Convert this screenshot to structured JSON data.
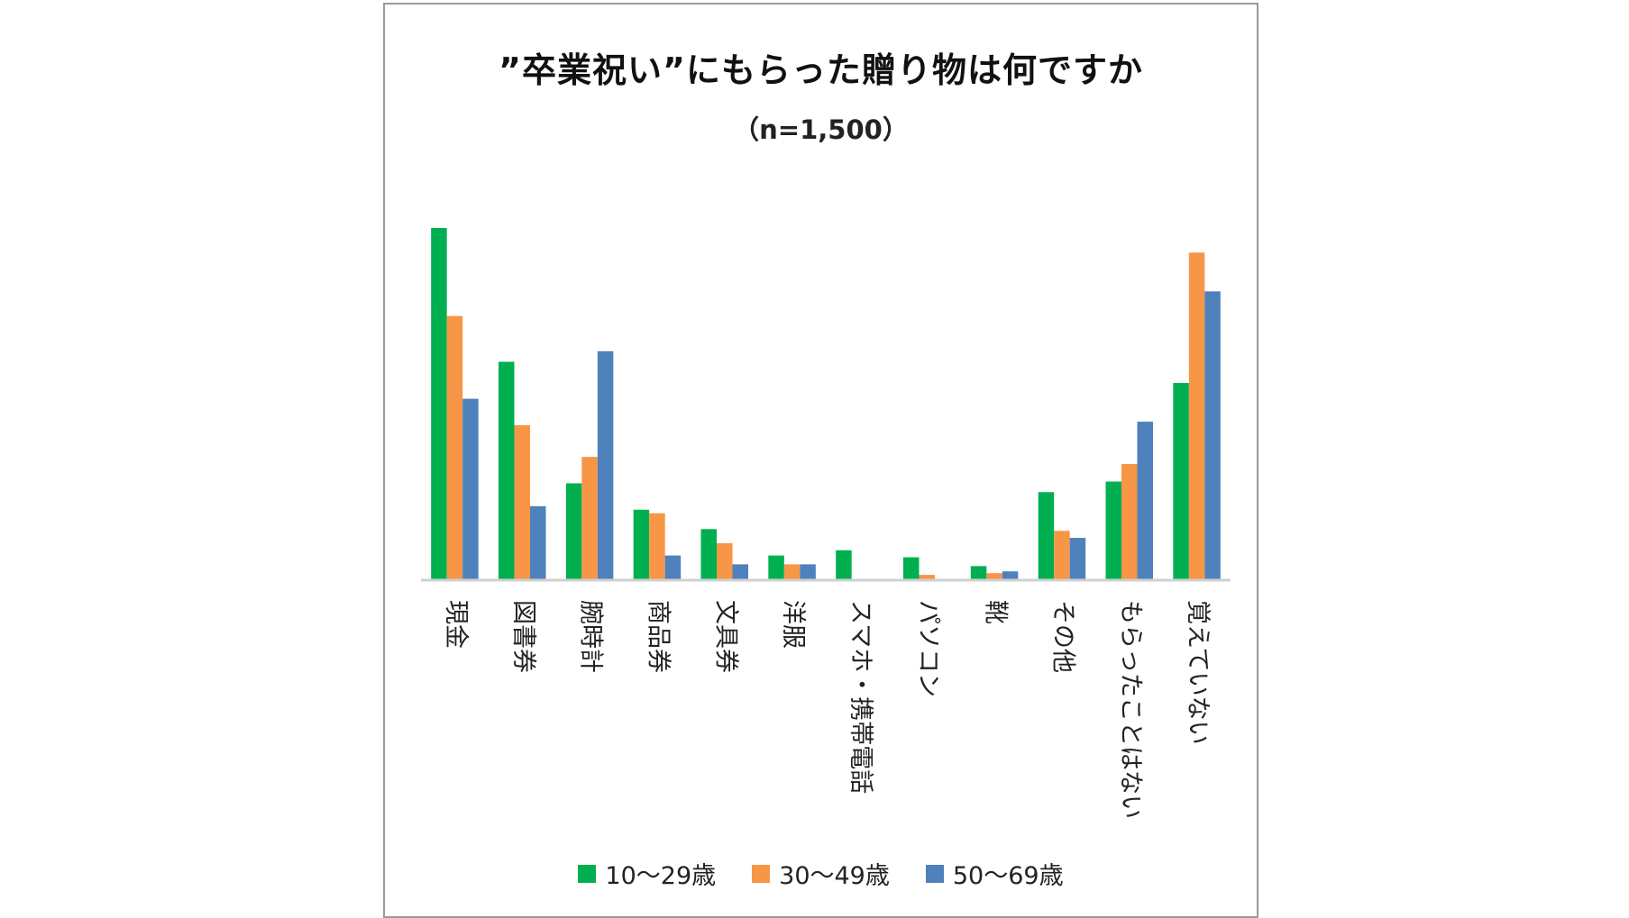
{
  "chart_data": {
    "type": "bar",
    "title": "”卒業祝い”にもらった贈り物は何ですか",
    "subtitle": "（n=1,500）",
    "xlabel": "",
    "ylabel": "",
    "ylim": [
      0,
      100
    ],
    "grid": false,
    "legend_position": "bottom",
    "categories": [
      "現金",
      "図書券",
      "腕時計",
      "商品券",
      "文具券",
      "洋服",
      "スマホ・携帯電話",
      "パソコン",
      "靴",
      "その他",
      "もらったことはない",
      "覚えていない"
    ],
    "series": [
      {
        "name": "10〜29歳",
        "color": "#00b050",
        "values": [
          100,
          62,
          27.5,
          20,
          14.5,
          7,
          8.5,
          6.5,
          4,
          25,
          28,
          56
        ]
      },
      {
        "name": "30〜49歳",
        "color": "#f79646",
        "values": [
          75,
          44,
          35,
          19,
          10.5,
          4.5,
          0,
          1.5,
          2,
          14,
          33,
          93
        ]
      },
      {
        "name": "50〜69歳",
        "color": "#4f81bd",
        "values": [
          51.5,
          21,
          65,
          7,
          4.5,
          4.5,
          0,
          0,
          2.5,
          12,
          45,
          82
        ]
      }
    ]
  }
}
